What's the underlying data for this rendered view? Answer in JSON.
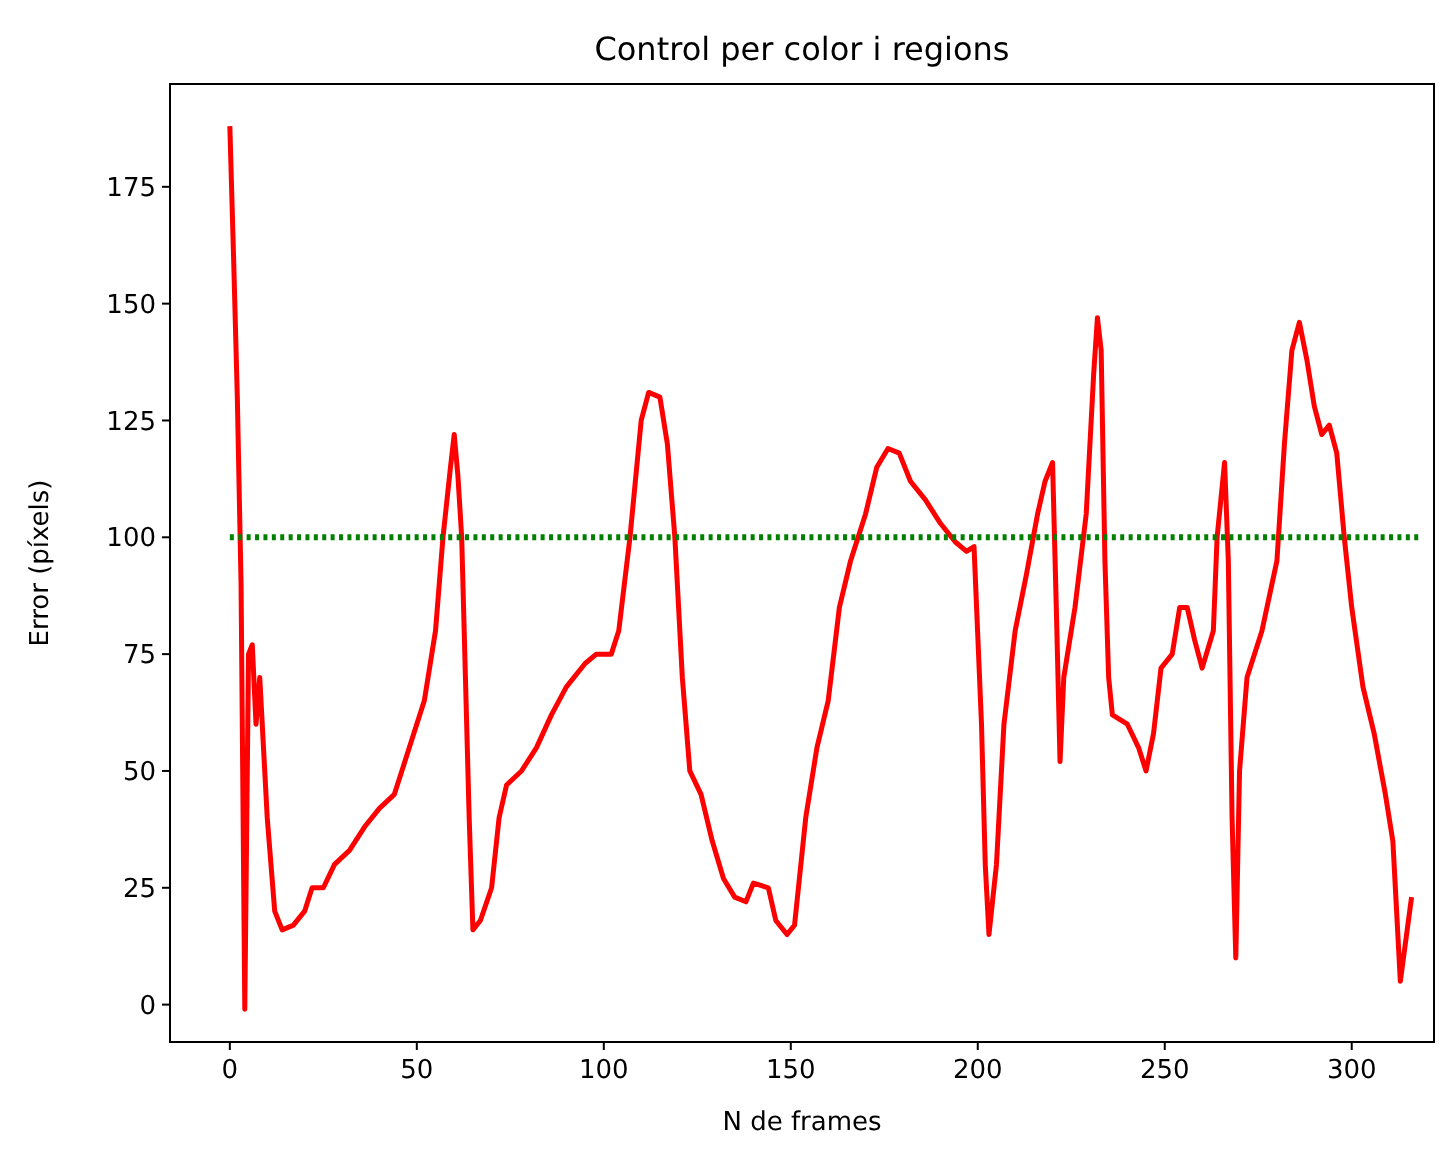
{
  "chart_data": {
    "type": "line",
    "title": "Control per color i regions",
    "xlabel": "N de frames",
    "ylabel": "Error (píxels)",
    "xlim": [
      -16,
      322
    ],
    "ylim": [
      -8,
      197
    ],
    "xticks": [
      0,
      50,
      100,
      150,
      200,
      250,
      300
    ],
    "yticks": [
      0,
      25,
      50,
      75,
      100,
      125,
      150,
      175
    ],
    "grid": false,
    "series": [
      {
        "color": "#ff0000",
        "line_style": "solid",
        "x": [
          0,
          1,
          2,
          3,
          4,
          5,
          6,
          7,
          8,
          10,
          12,
          14,
          17,
          20,
          22,
          25,
          28,
          32,
          36,
          40,
          44,
          48,
          52,
          55,
          57,
          59,
          60,
          61,
          62,
          63,
          64,
          65,
          67,
          70,
          72,
          74,
          78,
          82,
          86,
          90,
          95,
          98,
          102,
          104,
          107,
          110,
          112,
          115,
          117,
          119,
          121,
          123,
          126,
          129,
          132,
          135,
          138,
          140,
          144,
          146,
          149,
          151,
          154,
          157,
          160,
          163,
          166,
          170,
          173,
          176,
          179,
          182,
          186,
          190,
          194,
          197,
          199,
          201,
          202,
          203,
          205,
          207,
          210,
          213,
          216,
          218,
          220,
          221,
          222,
          223,
          226,
          229,
          231,
          232,
          233,
          234,
          235,
          236,
          240,
          243,
          245,
          247,
          249,
          252,
          254,
          256,
          258,
          260,
          263,
          264,
          266,
          267,
          268,
          269,
          270,
          272,
          276,
          280,
          282,
          284,
          286,
          288,
          290,
          292,
          294,
          296,
          298,
          300,
          303,
          306,
          309,
          311,
          313,
          316
        ],
        "values": [
          188,
          160,
          130,
          90,
          -1,
          75,
          77,
          60,
          70,
          40,
          20,
          16,
          17,
          20,
          25,
          25,
          30,
          33,
          38,
          42,
          45,
          55,
          65,
          80,
          100,
          115,
          122,
          113,
          100,
          70,
          40,
          16,
          18,
          25,
          40,
          47,
          50,
          55,
          62,
          68,
          73,
          75,
          75,
          80,
          100,
          125,
          131,
          130,
          120,
          100,
          70,
          50,
          45,
          35,
          27,
          23,
          22,
          26,
          25,
          18,
          15,
          17,
          40,
          55,
          65,
          85,
          95,
          105,
          115,
          119,
          118,
          112,
          108,
          103,
          99,
          97,
          98,
          60,
          30,
          15,
          30,
          60,
          80,
          92,
          105,
          112,
          116,
          85,
          52,
          70,
          85,
          105,
          135,
          147,
          140,
          95,
          70,
          62,
          60,
          55,
          50,
          58,
          72,
          75,
          85,
          85,
          78,
          72,
          80,
          100,
          116,
          95,
          40,
          10,
          50,
          70,
          80,
          95,
          120,
          140,
          146,
          138,
          128,
          122,
          124,
          118,
          100,
          85,
          68,
          58,
          45,
          35,
          5,
          23
        ]
      },
      {
        "color": "#008000",
        "line_style": "dotted",
        "x": [
          0,
          318
        ],
        "values": [
          100,
          100
        ]
      }
    ]
  }
}
